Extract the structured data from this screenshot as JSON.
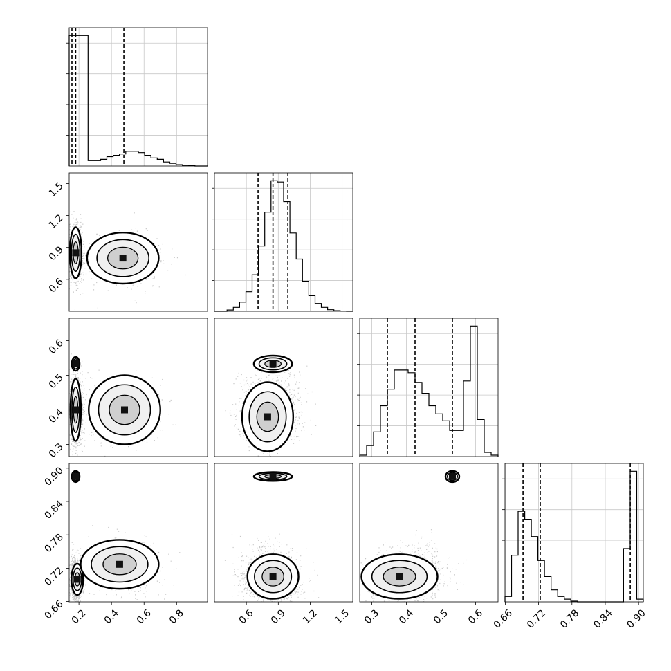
{
  "chart_data": {
    "type": "corner",
    "title": "",
    "grid": true,
    "parameters": [
      {
        "label": "",
        "range": [
          0.14,
          0.99
        ],
        "ticks": [
          "0.2",
          "0.4",
          "0.6",
          "0.8"
        ],
        "tick_values": [
          0.2,
          0.4,
          0.6,
          0.8
        ]
      },
      {
        "label": "",
        "range": [
          0.3,
          1.6
        ],
        "ticks": [
          "0.6",
          "0.9",
          "1.2",
          "1.5"
        ],
        "tick_values": [
          0.6,
          0.9,
          1.2,
          1.5
        ]
      },
      {
        "label": "",
        "range": [
          0.265,
          0.665
        ],
        "ticks": [
          "0.3",
          "0.4",
          "0.5",
          "0.6"
        ],
        "tick_values": [
          0.3,
          0.4,
          0.5,
          0.6
        ]
      },
      {
        "label": "",
        "range": [
          0.6595,
          0.9085
        ],
        "ticks": [
          "0.66",
          "0.72",
          "0.78",
          "0.84",
          "0.90"
        ],
        "tick_values": [
          0.66,
          0.72,
          0.78,
          0.84,
          0.9
        ]
      }
    ],
    "quantiles": [
      [
        0.157,
        0.18,
        0.476
      ],
      [
        0.71,
        0.85,
        0.99
      ],
      [
        0.345,
        0.425,
        0.533
      ],
      [
        0.692,
        0.723,
        0.885
      ]
    ],
    "histograms": [
      {
        "edges_min": 0.14,
        "edges_max": 0.99,
        "counts": [
          0.98,
          0.98,
          0.98,
          0.04,
          0.04,
          0.05,
          0.07,
          0.08,
          0.09,
          0.11,
          0.11,
          0.1,
          0.08,
          0.06,
          0.05,
          0.03,
          0.02,
          0.01,
          0.005,
          0.003,
          0,
          0
        ]
      },
      {
        "edges_min": 0.3,
        "edges_max": 1.6,
        "counts": [
          0,
          0,
          0.01,
          0.03,
          0.07,
          0.15,
          0.28,
          0.5,
          0.76,
          1.0,
          0.99,
          0.84,
          0.6,
          0.4,
          0.23,
          0.12,
          0.06,
          0.03,
          0.012,
          0.005,
          0.002,
          0
        ]
      },
      {
        "edges_min": 0.265,
        "edges_max": 0.665,
        "counts": [
          0.01,
          0.08,
          0.18,
          0.37,
          0.49,
          0.63,
          0.63,
          0.61,
          0.54,
          0.46,
          0.37,
          0.31,
          0.26,
          0.19,
          0.19,
          0.55,
          0.95,
          0.27,
          0.03,
          0.01
        ]
      },
      {
        "edges_min": 0.6595,
        "edges_max": 0.9085,
        "counts": [
          0.04,
          0.35,
          0.68,
          0.62,
          0.49,
          0.31,
          0.19,
          0.09,
          0.04,
          0.02,
          0.005,
          0,
          0,
          0,
          0,
          0,
          0,
          0,
          0.4,
          0.98,
          0.02
        ]
      }
    ],
    "clusters": [
      {
        "weight": 0.72,
        "mean": [
          0.18,
          0.85,
          0.4,
          0.7
        ],
        "sd": [
          0.02,
          0.13,
          0.05,
          0.02
        ]
      },
      {
        "weight": 0.28,
        "mean": [
          0.48,
          0.77,
          0.4,
          0.72
        ],
        "sd": [
          0.12,
          0.12,
          0.05,
          0.025
        ]
      }
    ],
    "modes": [
      {
        "pair": [
          0,
          1
        ],
        "center": [
          0.18,
          0.85
        ],
        "sd": [
          0.018,
          0.12
        ]
      },
      {
        "pair": [
          0,
          1
        ],
        "center": [
          0.47,
          0.8
        ],
        "sd": [
          0.11,
          0.12
        ]
      },
      {
        "pair": [
          0,
          2
        ],
        "center": [
          0.18,
          0.533
        ],
        "sd": [
          0.012,
          0.01
        ]
      },
      {
        "pair": [
          0,
          2
        ],
        "center": [
          0.18,
          0.4
        ],
        "sd": [
          0.016,
          0.045
        ]
      },
      {
        "pair": [
          0,
          2
        ],
        "center": [
          0.48,
          0.4
        ],
        "sd": [
          0.11,
          0.05
        ]
      },
      {
        "pair": [
          0,
          3
        ],
        "center": [
          0.18,
          0.885
        ],
        "sd": [
          0.012,
          0.005
        ]
      },
      {
        "pair": [
          0,
          3
        ],
        "center": [
          0.19,
          0.7
        ],
        "sd": [
          0.018,
          0.014
        ]
      },
      {
        "pair": [
          0,
          3
        ],
        "center": [
          0.45,
          0.727
        ],
        "sd": [
          0.12,
          0.022
        ]
      },
      {
        "pair": [
          1,
          2
        ],
        "center": [
          0.85,
          0.533
        ],
        "sd": [
          0.09,
          0.012
        ]
      },
      {
        "pair": [
          1,
          2
        ],
        "center": [
          0.8,
          0.38
        ],
        "sd": [
          0.12,
          0.05
        ]
      },
      {
        "pair": [
          1,
          3
        ],
        "center": [
          0.85,
          0.885
        ],
        "sd": [
          0.09,
          0.004
        ]
      },
      {
        "pair": [
          1,
          3
        ],
        "center": [
          0.85,
          0.705
        ],
        "sd": [
          0.12,
          0.02
        ]
      },
      {
        "pair": [
          2,
          3
        ],
        "center": [
          0.533,
          0.885
        ],
        "sd": [
          0.01,
          0.005
        ]
      },
      {
        "pair": [
          2,
          3
        ],
        "center": [
          0.38,
          0.705
        ],
        "sd": [
          0.055,
          0.02
        ]
      }
    ]
  }
}
